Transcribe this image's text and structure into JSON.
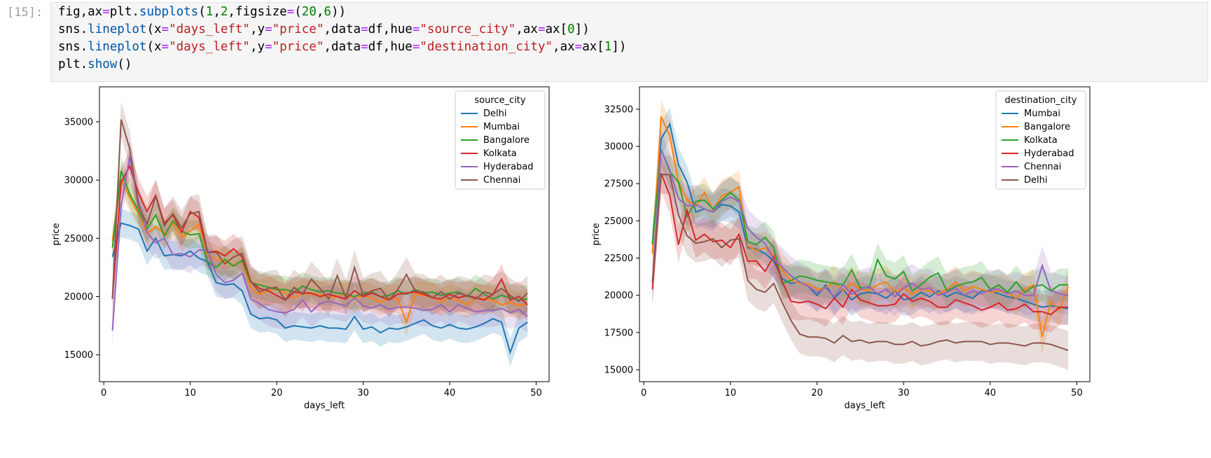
{
  "cell": {
    "prompt": "[15]:",
    "code_lines": [
      "fig,ax=plt.subplots(1,2,figsize=(20,6))",
      "sns.lineplot(x=\"days_left\",y=\"price\",data=df,hue=\"source_city\",ax=ax[0])",
      "sns.lineplot(x=\"days_left\",y=\"price\",data=df,hue=\"destination_city\",ax=ax[1])",
      "plt.show()"
    ]
  },
  "colors": {
    "blue": "#1f77b4",
    "orange": "#ff7f0e",
    "green": "#2ca02c",
    "red": "#d62728",
    "purple": "#9467bd",
    "brown": "#8c564b"
  },
  "chart_data": [
    {
      "type": "line",
      "xlabel": "days_left",
      "ylabel": "price",
      "xlim": [
        -0.5,
        51.5
      ],
      "ylim": [
        12700,
        38000
      ],
      "xticks": [
        0,
        10,
        20,
        30,
        40,
        50
      ],
      "yticks": [
        15000,
        20000,
        25000,
        30000,
        35000
      ],
      "legend_title": "source_city",
      "legend_position": "top-right",
      "series": [
        {
          "name": "Delhi",
          "color": "#1f77b4",
          "ci": 1200,
          "values": [
            23400,
            26300,
            26100,
            25800,
            23900,
            25000,
            23500,
            23600,
            23500,
            23900,
            23300,
            23000,
            21200,
            21000,
            21100,
            20500,
            18500,
            18100,
            18200,
            18000,
            17300,
            17500,
            17400,
            17300,
            17500,
            17300,
            17300,
            17200,
            18300,
            17200,
            17400,
            16900,
            17300,
            17200,
            17400,
            17700,
            18000,
            17500,
            17300,
            17600,
            17300,
            17200,
            17400,
            17700,
            18100,
            17800,
            15200,
            17300,
            17800
          ]
        },
        {
          "name": "Mumbai",
          "color": "#ff7f0e",
          "ci": 1200,
          "values": [
            24800,
            30100,
            28500,
            27100,
            25400,
            26000,
            25400,
            26300,
            25100,
            25600,
            26200,
            23600,
            23200,
            23000,
            22700,
            23000,
            20800,
            20200,
            20500,
            20700,
            20300,
            19900,
            20300,
            20200,
            20200,
            19900,
            20000,
            20300,
            19800,
            20100,
            19900,
            19500,
            19900,
            19800,
            17800,
            20200,
            20100,
            20000,
            19500,
            19900,
            19700,
            19300,
            19900,
            19800,
            19700,
            19300,
            19500,
            19200,
            19400
          ]
        },
        {
          "name": "Bangalore",
          "color": "#2ca02c",
          "ci": 1200,
          "values": [
            24200,
            30800,
            28800,
            27400,
            25800,
            27000,
            25200,
            26500,
            25600,
            25300,
            25400,
            23000,
            22500,
            23200,
            22600,
            23100,
            21200,
            21000,
            20800,
            20600,
            20600,
            20400,
            20900,
            20600,
            20400,
            20500,
            20300,
            20200,
            20000,
            20300,
            20400,
            20000,
            20100,
            20500,
            20200,
            20600,
            20300,
            20400,
            20100,
            20300,
            20400,
            20000,
            20700,
            20200,
            19800,
            20100,
            19900,
            19700,
            19800
          ]
        },
        {
          "name": "Kolkata",
          "color": "#d62728",
          "ci": 1300,
          "values": [
            19800,
            29800,
            31200,
            28900,
            27300,
            28700,
            26300,
            27000,
            25500,
            27300,
            26800,
            23800,
            23900,
            23500,
            24100,
            23400,
            21300,
            20700,
            20500,
            20100,
            19700,
            20400,
            20300,
            20300,
            20000,
            20200,
            20000,
            19800,
            20500,
            20000,
            20300,
            20000,
            19700,
            20200,
            20300,
            20400,
            20200,
            19900,
            19800,
            20200,
            19900,
            20100,
            19900,
            19700,
            20200,
            21500,
            19700,
            20000,
            19300
          ]
        },
        {
          "name": "Hyderabad",
          "color": "#9467bd",
          "ci": 1400,
          "values": [
            17100,
            27800,
            32000,
            28100,
            25500,
            24600,
            25000,
            23600,
            23700,
            23400,
            24000,
            24000,
            21900,
            21200,
            21400,
            22000,
            19800,
            19400,
            18900,
            18700,
            18600,
            18900,
            19700,
            18700,
            19400,
            19600,
            19400,
            19200,
            19900,
            19200,
            19000,
            19300,
            18900,
            19100,
            19100,
            19000,
            18800,
            18900,
            19300,
            18700,
            19300,
            19000,
            18700,
            18800,
            18800,
            19000,
            18600,
            18900,
            18300
          ]
        },
        {
          "name": "Chennai",
          "color": "#8c564b",
          "ci": 1500,
          "values": [
            19800,
            35200,
            32700,
            27800,
            26200,
            28600,
            26100,
            27100,
            25900,
            27100,
            27300,
            23800,
            23800,
            22800,
            23400,
            23700,
            21300,
            20400,
            20700,
            20800,
            19700,
            20800,
            20200,
            21500,
            20700,
            19800,
            21800,
            19900,
            22500,
            20100,
            20500,
            20700,
            19700,
            20600,
            21900,
            20500,
            20400,
            19900,
            20400,
            19800,
            20300,
            20100,
            19800,
            20400,
            20200,
            20700,
            20100,
            19600,
            20300
          ]
        }
      ]
    },
    {
      "type": "line",
      "xlabel": "days_left",
      "ylabel": "price",
      "xlim": [
        -0.5,
        51.5
      ],
      "ylim": [
        14200,
        34000
      ],
      "xticks": [
        0,
        10,
        20,
        30,
        40,
        50
      ],
      "yticks": [
        15000,
        17500,
        20000,
        22500,
        25000,
        27500,
        30000,
        32500
      ],
      "legend_title": "destination_city",
      "legend_position": "top-right",
      "series": [
        {
          "name": "Mumbai",
          "color": "#1f77b4",
          "ci": 1100,
          "values": [
            23500,
            30500,
            31500,
            28800,
            27600,
            25600,
            25800,
            25600,
            26100,
            26000,
            25600,
            23200,
            23100,
            22800,
            22300,
            21100,
            20800,
            20900,
            20600,
            20000,
            20700,
            19800,
            20400,
            19700,
            20100,
            20200,
            20100,
            19800,
            20300,
            19700,
            19800,
            20200,
            19900,
            20300,
            19900,
            20200,
            20000,
            19800,
            20300,
            20300,
            20100,
            19900,
            19800,
            19600,
            19400,
            19200,
            19300,
            19200,
            19100
          ]
        },
        {
          "name": "Bangalore",
          "color": "#ff7f0e",
          "ci": 1100,
          "values": [
            22800,
            32000,
            30700,
            27600,
            26400,
            26000,
            26900,
            25700,
            26700,
            26900,
            27300,
            23300,
            23000,
            23200,
            22700,
            21700,
            21000,
            20800,
            20800,
            20400,
            20500,
            20900,
            20300,
            20800,
            20400,
            20300,
            20700,
            20900,
            20200,
            20500,
            20100,
            20400,
            20300,
            20100,
            20400,
            20900,
            20300,
            20600,
            20400,
            20200,
            20300,
            20200,
            19800,
            20400,
            20700,
            17200,
            19600,
            19000,
            20600
          ]
        },
        {
          "name": "Kolkata",
          "color": "#2ca02c",
          "ci": 1100,
          "values": [
            23400,
            29800,
            28300,
            27600,
            25300,
            26300,
            26400,
            25800,
            26400,
            26900,
            26400,
            23600,
            23400,
            23900,
            23200,
            20800,
            21000,
            21300,
            21200,
            21000,
            20900,
            20800,
            20700,
            21700,
            20500,
            20500,
            22400,
            21300,
            21100,
            21600,
            20300,
            20700,
            21200,
            21500,
            20300,
            20600,
            20800,
            20900,
            21200,
            20400,
            20700,
            20200,
            20900,
            20200,
            20600,
            20700,
            20300,
            20700,
            20700
          ]
        },
        {
          "name": "Hyderabad",
          "color": "#d62728",
          "ci": 1200,
          "values": [
            20400,
            28200,
            26700,
            23400,
            25700,
            23700,
            24100,
            23600,
            23700,
            23200,
            24100,
            22300,
            22300,
            21600,
            22600,
            20900,
            19600,
            19500,
            19600,
            19400,
            19100,
            19800,
            19200,
            20400,
            19700,
            19500,
            19300,
            19300,
            19400,
            20100,
            19600,
            19800,
            19600,
            19200,
            19200,
            19700,
            19500,
            19300,
            19000,
            19200,
            19500,
            19000,
            19100,
            19400,
            18900,
            18900,
            18700,
            19200,
            19200
          ]
        },
        {
          "name": "Chennai",
          "color": "#9467bd",
          "ci": 1300,
          "values": [
            20900,
            29800,
            28400,
            26500,
            26000,
            26100,
            25800,
            25600,
            26300,
            26600,
            26300,
            24500,
            23900,
            23500,
            22400,
            21900,
            21300,
            20900,
            20600,
            20200,
            20500,
            19900,
            20700,
            20100,
            20400,
            20600,
            20100,
            20400,
            19900,
            20500,
            20800,
            20400,
            20500,
            20000,
            20200,
            20500,
            20000,
            20300,
            20100,
            20400,
            20400,
            20100,
            20300,
            20000,
            20000,
            22000,
            20300,
            20100,
            20000
          ]
        },
        {
          "name": "Delhi",
          "color": "#8c564b",
          "ci": 1300,
          "values": [
            20800,
            28100,
            28100,
            25400,
            24000,
            23500,
            23600,
            23800,
            23200,
            23700,
            23800,
            21000,
            20400,
            20200,
            20800,
            19500,
            18300,
            17400,
            17200,
            17200,
            17100,
            16800,
            17300,
            16900,
            17000,
            16800,
            16900,
            16900,
            16700,
            16700,
            16900,
            16600,
            16700,
            16900,
            17000,
            16800,
            16900,
            16900,
            16900,
            16700,
            16800,
            16800,
            16700,
            16600,
            16800,
            16800,
            16700,
            16500,
            16300
          ]
        }
      ]
    }
  ]
}
